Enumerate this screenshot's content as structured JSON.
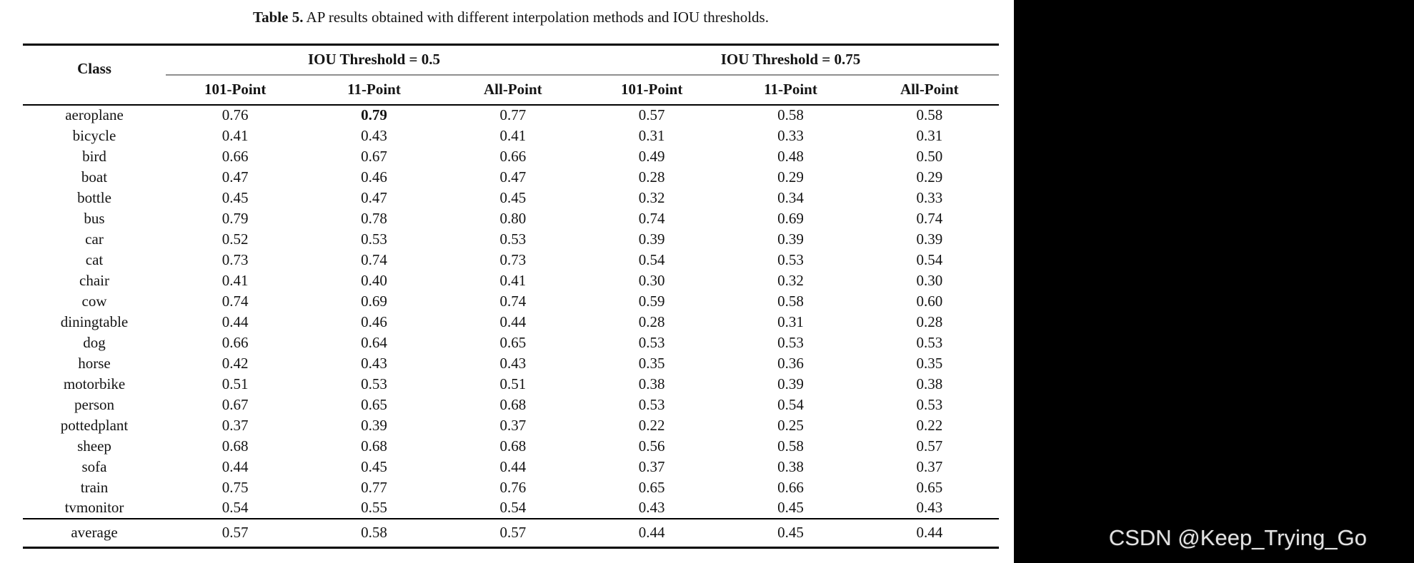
{
  "caption": {
    "label": "Table 5.",
    "text": " AP results obtained with different interpolation methods and IOU thresholds."
  },
  "table": {
    "class_header": "Class",
    "group_headers": [
      "IOU Threshold = 0.5",
      "IOU Threshold = 0.75"
    ],
    "column_headers": [
      "101-Point",
      "11-Point",
      "All-Point",
      "101-Point",
      "11-Point",
      "All-Point"
    ],
    "rows": [
      {
        "class": "aeroplane",
        "values": [
          "0.76",
          "0.79",
          "0.77",
          "0.57",
          "0.58",
          "0.58"
        ],
        "bold": [
          1
        ]
      },
      {
        "class": "bicycle",
        "values": [
          "0.41",
          "0.43",
          "0.41",
          "0.31",
          "0.33",
          "0.31"
        ]
      },
      {
        "class": "bird",
        "values": [
          "0.66",
          "0.67",
          "0.66",
          "0.49",
          "0.48",
          "0.50"
        ]
      },
      {
        "class": "boat",
        "values": [
          "0.47",
          "0.46",
          "0.47",
          "0.28",
          "0.29",
          "0.29"
        ]
      },
      {
        "class": "bottle",
        "values": [
          "0.45",
          "0.47",
          "0.45",
          "0.32",
          "0.34",
          "0.33"
        ]
      },
      {
        "class": "bus",
        "values": [
          "0.79",
          "0.78",
          "0.80",
          "0.74",
          "0.69",
          "0.74"
        ]
      },
      {
        "class": "car",
        "values": [
          "0.52",
          "0.53",
          "0.53",
          "0.39",
          "0.39",
          "0.39"
        ]
      },
      {
        "class": "cat",
        "values": [
          "0.73",
          "0.74",
          "0.73",
          "0.54",
          "0.53",
          "0.54"
        ]
      },
      {
        "class": "chair",
        "values": [
          "0.41",
          "0.40",
          "0.41",
          "0.30",
          "0.32",
          "0.30"
        ]
      },
      {
        "class": "cow",
        "values": [
          "0.74",
          "0.69",
          "0.74",
          "0.59",
          "0.58",
          "0.60"
        ]
      },
      {
        "class": "diningtable",
        "values": [
          "0.44",
          "0.46",
          "0.44",
          "0.28",
          "0.31",
          "0.28"
        ]
      },
      {
        "class": "dog",
        "values": [
          "0.66",
          "0.64",
          "0.65",
          "0.53",
          "0.53",
          "0.53"
        ]
      },
      {
        "class": "horse",
        "values": [
          "0.42",
          "0.43",
          "0.43",
          "0.35",
          "0.36",
          "0.35"
        ]
      },
      {
        "class": "motorbike",
        "values": [
          "0.51",
          "0.53",
          "0.51",
          "0.38",
          "0.39",
          "0.38"
        ]
      },
      {
        "class": "person",
        "values": [
          "0.67",
          "0.65",
          "0.68",
          "0.53",
          "0.54",
          "0.53"
        ]
      },
      {
        "class": "pottedplant",
        "values": [
          "0.37",
          "0.39",
          "0.37",
          "0.22",
          "0.25",
          "0.22"
        ]
      },
      {
        "class": "sheep",
        "values": [
          "0.68",
          "0.68",
          "0.68",
          "0.56",
          "0.58",
          "0.57"
        ]
      },
      {
        "class": "sofa",
        "values": [
          "0.44",
          "0.45",
          "0.44",
          "0.37",
          "0.38",
          "0.37"
        ]
      },
      {
        "class": "train",
        "values": [
          "0.75",
          "0.77",
          "0.76",
          "0.65",
          "0.66",
          "0.65"
        ]
      },
      {
        "class": "tvmonitor",
        "values": [
          "0.54",
          "0.55",
          "0.54",
          "0.43",
          "0.45",
          "0.43"
        ]
      }
    ],
    "summary_row": {
      "class": "average",
      "values": [
        "0.57",
        "0.58",
        "0.57",
        "0.44",
        "0.45",
        "0.44"
      ]
    }
  },
  "watermark": {
    "text": "CSDN @Keep_Trying_Go",
    "color": "#e3e3e3",
    "background": "#000000"
  }
}
